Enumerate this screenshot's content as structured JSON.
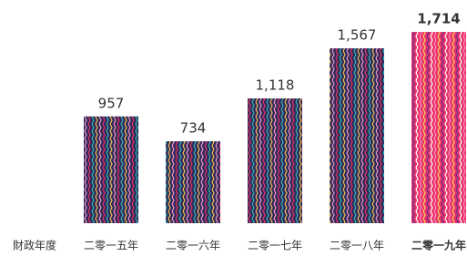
{
  "chart_data": {
    "type": "bar",
    "x_label": "財政年度",
    "categories": [
      "二零一五年",
      "二零一六年",
      "二零一七年",
      "二零一八年",
      "二零一九年"
    ],
    "values": [
      957,
      734,
      1118,
      1567,
      1714
    ],
    "value_labels": [
      "957",
      "734",
      "1,118",
      "1,567",
      "1,714"
    ],
    "highlight_index": 4
  }
}
